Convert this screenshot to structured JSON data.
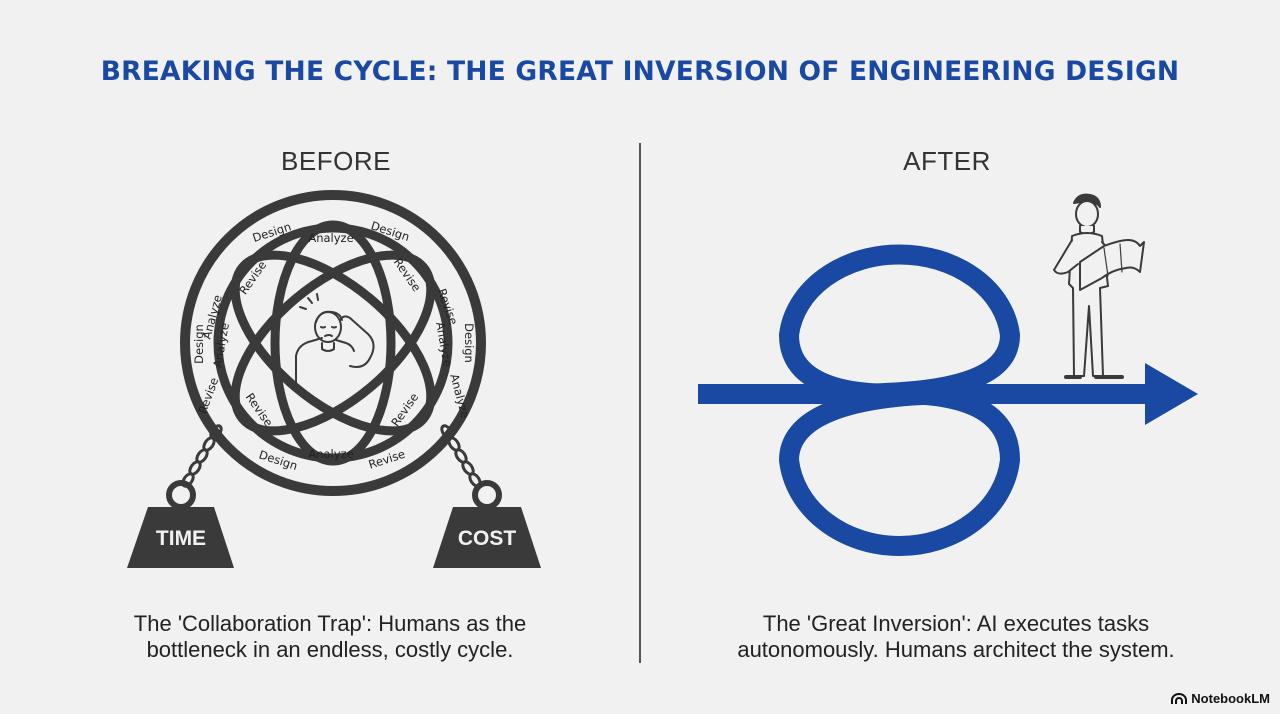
{
  "title": "BREAKING THE CYCLE: THE GREAT INVERSION OF ENGINEERING DESIGN",
  "before": {
    "heading": "BEFORE",
    "cycle_words": {
      "design": "Design",
      "analyze": "Analyze",
      "revise": "Revise"
    },
    "weights": {
      "left": "TIME",
      "right": "COST"
    },
    "caption_lines": [
      "The 'Collaboration Trap': Humans as the",
      "bottleneck in an endless, costly cycle."
    ]
  },
  "after": {
    "heading": "AFTER",
    "caption_lines": [
      "The 'Great Inversion': AI executes tasks",
      "autonomously. Humans architect the system."
    ]
  },
  "colors": {
    "accent_blue": "#1a49a3",
    "dark_gray": "#3a3a3a"
  },
  "brand": {
    "label": "NotebookLM",
    "icon": "notebooklm-logo-icon"
  }
}
